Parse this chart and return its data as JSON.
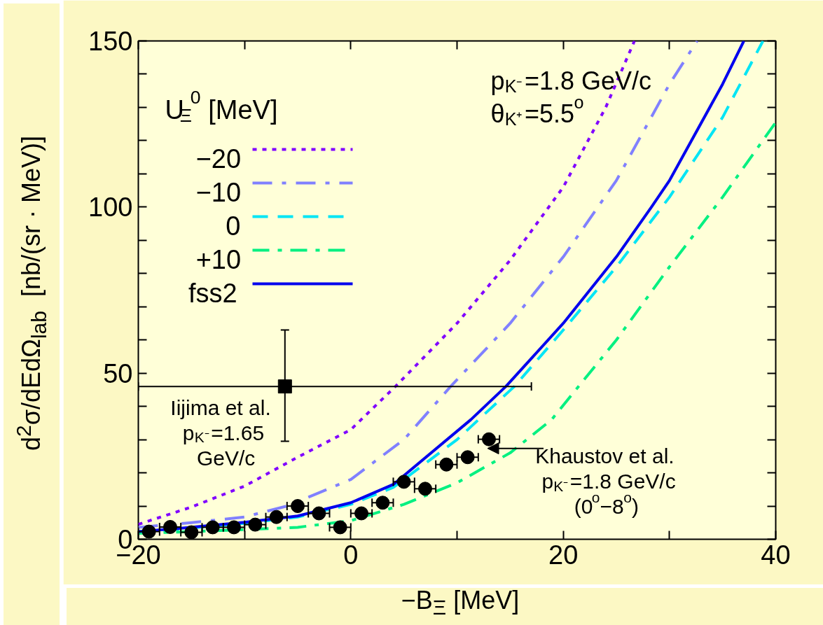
{
  "chart_data": {
    "type": "line",
    "xlabel": "−B$_{Ξ}$ [MeV]",
    "ylabel": "d$^{2}$σ/dEdΩ$_{lab}$  [nb/(sr · MeV)]",
    "legend_title": "U$_{Ξ}$$^{0}$ [MeV]",
    "legend": "top left",
    "grid": false,
    "xlim": [
      -20,
      40
    ],
    "ylim": [
      0,
      150
    ],
    "xticks": [
      {
        "value": -20,
        "label": "−20"
      },
      {
        "value": -10,
        "label": null
      },
      0,
      {
        "value": 10,
        "label": null
      },
      20,
      {
        "value": 30,
        "label": null
      },
      40
    ],
    "yticks": [
      0,
      {
        "value": 10,
        "label": null
      },
      {
        "value": 20,
        "label": null
      },
      {
        "value": 30,
        "label": null
      },
      {
        "value": 40,
        "label": null
      },
      50,
      {
        "value": 60,
        "label": null
      },
      {
        "value": 70,
        "label": null
      },
      {
        "value": 80,
        "label": null
      },
      {
        "value": 90,
        "label": null
      },
      100,
      {
        "value": 110,
        "label": null
      },
      {
        "value": 120,
        "label": null
      },
      {
        "value": 130,
        "label": null
      },
      {
        "value": 140,
        "label": null
      },
      150
    ],
    "annotations": [
      "p$_{K⁻}$=1.8 GeV/c",
      "θ$_{K⁺}$=5.5$^{o}$"
    ],
    "series": [
      {
        "name": "−20",
        "color": "#8000ff",
        "line_style": "dotted",
        "x": [
          -20,
          -15,
          -10,
          -5,
          0,
          4.2,
          10,
          15,
          20,
          24,
          26.7
        ],
        "values": [
          4.5,
          9.7,
          16,
          24.7,
          33,
          46,
          65,
          84,
          106,
          130,
          150
        ]
      },
      {
        "name": "−10",
        "color": "#8080ff",
        "line_style": "dashdot",
        "x": [
          -20,
          -15,
          -10,
          -6,
          0,
          5,
          9.4,
          15,
          20,
          25,
          30,
          32.6
        ],
        "values": [
          3.6,
          5,
          6.7,
          10,
          18,
          30,
          46,
          65,
          85,
          108,
          137,
          150
        ]
      },
      {
        "name": "0",
        "color": "#00e5f5",
        "line_style": "dashed",
        "x": [
          -20,
          -16,
          -10,
          -5,
          0,
          4,
          10,
          15.4,
          20,
          25,
          30,
          35,
          38.8
        ],
        "values": [
          2.2,
          3.1,
          4.8,
          6.7,
          10.5,
          15.6,
          30,
          46,
          63,
          82,
          103,
          127,
          150
        ]
      },
      {
        "name": "+10",
        "color": "#00f080",
        "line_style": "dashdotdot",
        "x": [
          -20,
          -16,
          -10,
          -5,
          0,
          5,
          10,
          15,
          18.9,
          25,
          30,
          35,
          40
        ],
        "values": [
          1.8,
          2.2,
          2.9,
          3.6,
          5.6,
          10.5,
          17,
          26,
          36,
          60,
          82,
          103,
          125.5
        ]
      },
      {
        "name": "fss2",
        "color": "#0000ee",
        "line_style": "solid",
        "x": [
          -20,
          -16,
          -10,
          -5,
          0,
          4,
          11.3,
          14.6,
          20,
          25,
          28.3,
          30,
          35,
          37
        ],
        "values": [
          2.3,
          3.3,
          5.1,
          7,
          11,
          16.5,
          36,
          46,
          65,
          85,
          100,
          108,
          137,
          150
        ]
      },
      {
        "name": "Iijima et al.\np$_{K⁻}$=1.65\nGeV/c",
        "type": "scatter",
        "marker": "square",
        "color": "#000000",
        "x": [
          -6.2
        ],
        "values": [
          46
        ],
        "errors": [
          [
            29.5,
            63
          ]
        ],
        "xerrors": [
          [
            -20,
            17
          ]
        ]
      },
      {
        "name": "Khaustov et al.\np$_{K⁻}$=1.8 GeV/c\n(0$^{o}$−8$^{o}$)",
        "type": "scatter",
        "marker": "circle",
        "color": "#000000",
        "x": [
          -19,
          -17,
          -15,
          -13,
          -11,
          -9,
          -7,
          -5,
          -3,
          -1,
          1,
          3,
          5,
          7,
          9,
          11,
          13
        ],
        "values": [
          2.3,
          3.7,
          2.1,
          3.6,
          3.6,
          4.4,
          6.7,
          10,
          7.8,
          3.6,
          7.8,
          11,
          17.3,
          15.2,
          22.5,
          24.7,
          30.1
        ],
        "xerrors": [
          1,
          1,
          1,
          1,
          1,
          1,
          1,
          1,
          1,
          1,
          1,
          1,
          1,
          1,
          1,
          1,
          1
        ]
      }
    ]
  }
}
